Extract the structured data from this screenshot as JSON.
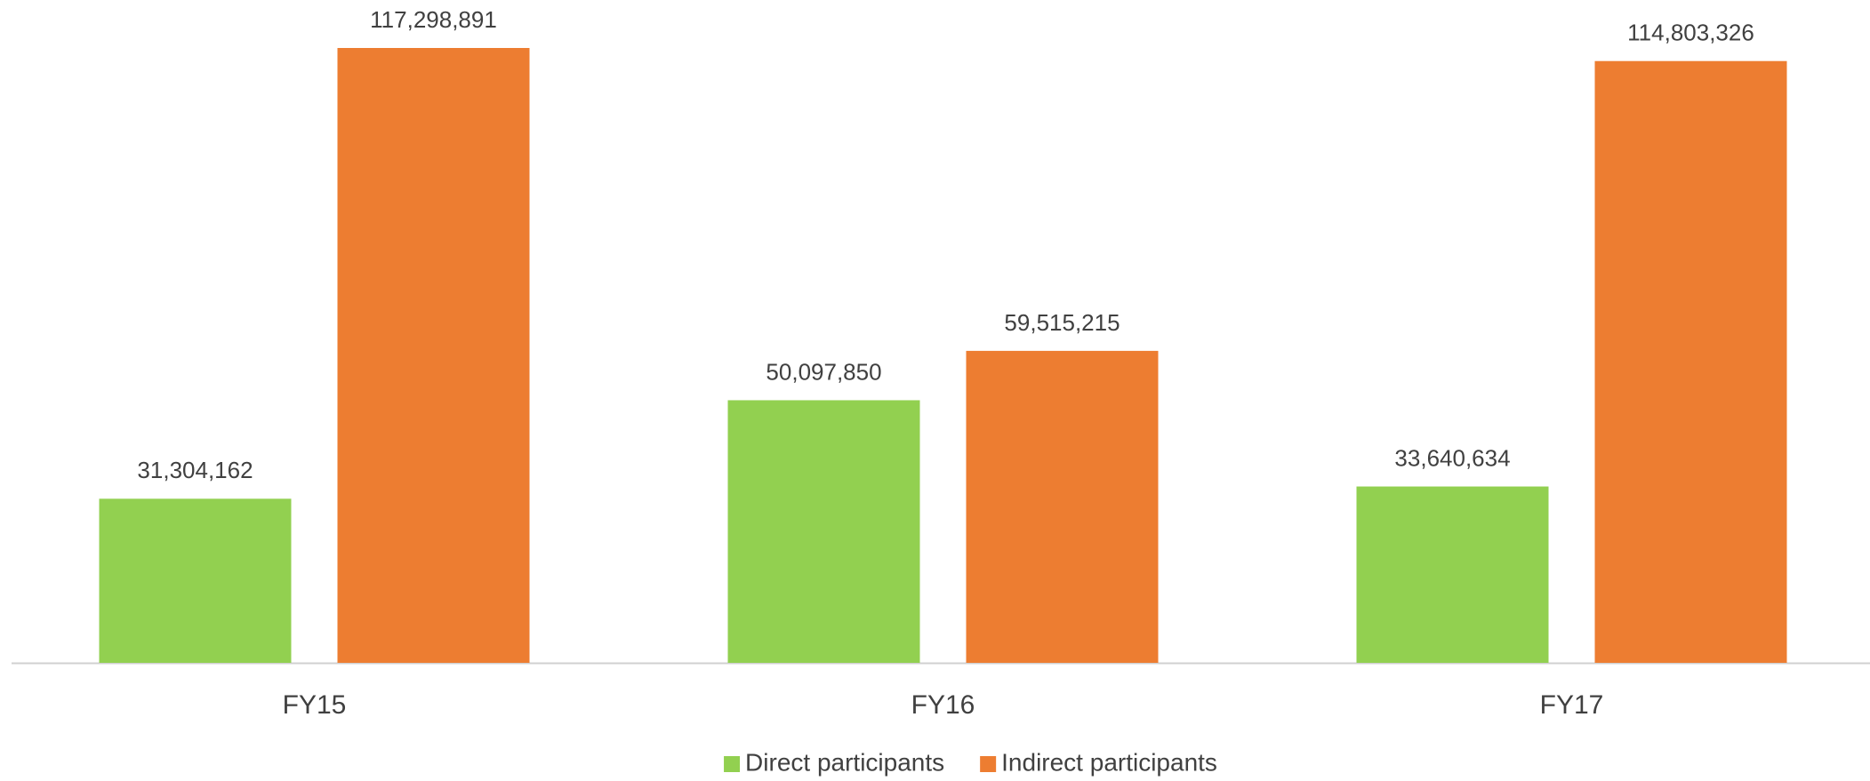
{
  "chart_data": {
    "type": "bar",
    "categories": [
      "FY15",
      "FY16",
      "FY17"
    ],
    "series": [
      {
        "name": "Direct participants",
        "color": "#92d050",
        "values": [
          31304162,
          50097850,
          33640634
        ],
        "value_labels": [
          "31,304,162",
          "50,097,850",
          "33,640,634"
        ]
      },
      {
        "name": "Indirect participants",
        "color": "#ed7d31",
        "values": [
          117298891,
          59515215,
          114803326
        ],
        "value_labels": [
          "117,298,891",
          "59,515,215",
          "114,803,326"
        ]
      }
    ],
    "legend": "bottom"
  }
}
